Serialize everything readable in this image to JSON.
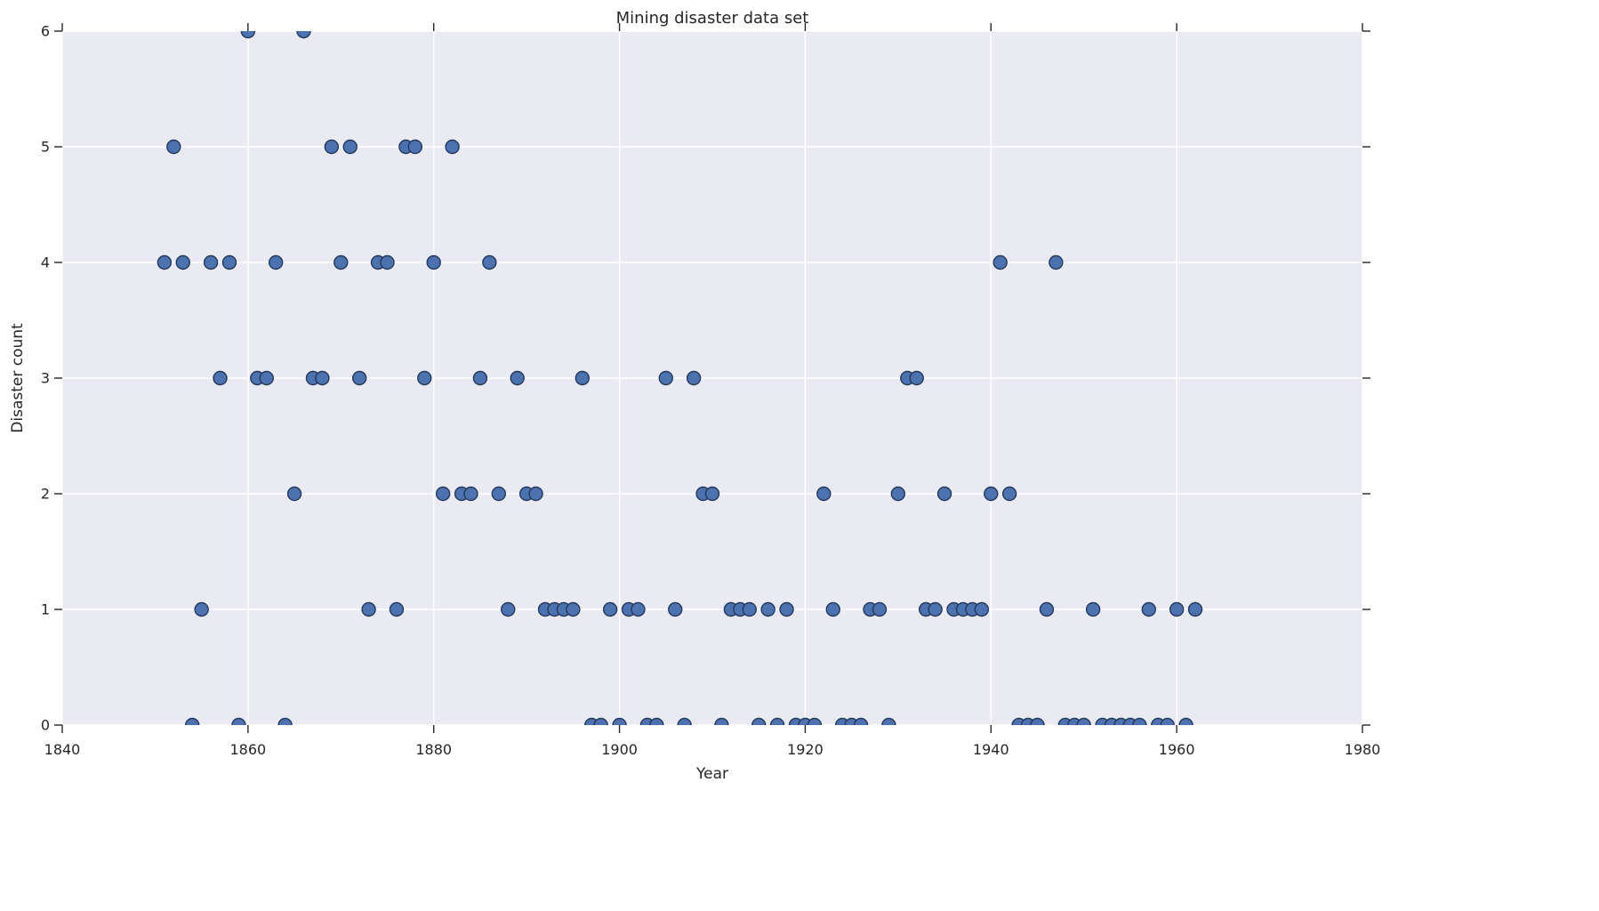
{
  "chart_data": {
    "type": "scatter",
    "title": "Mining disaster data set",
    "xlabel": "Year",
    "ylabel": "Disaster count",
    "xlim": [
      1840,
      1980
    ],
    "ylim": [
      0,
      6
    ],
    "xticks": [
      1840,
      1860,
      1880,
      1900,
      1920,
      1940,
      1960,
      1980
    ],
    "yticks": [
      0,
      1,
      2,
      3,
      4,
      5,
      6
    ],
    "grid": true,
    "legend_position": "none",
    "series": [
      {
        "name": "disasters",
        "x": [
          1851,
          1852,
          1853,
          1854,
          1855,
          1856,
          1857,
          1858,
          1859,
          1860,
          1861,
          1862,
          1863,
          1864,
          1865,
          1866,
          1867,
          1868,
          1869,
          1870,
          1871,
          1872,
          1873,
          1874,
          1875,
          1876,
          1877,
          1878,
          1879,
          1880,
          1881,
          1882,
          1883,
          1884,
          1885,
          1886,
          1887,
          1888,
          1889,
          1890,
          1891,
          1892,
          1893,
          1894,
          1895,
          1896,
          1897,
          1898,
          1899,
          1900,
          1901,
          1902,
          1903,
          1904,
          1905,
          1906,
          1907,
          1908,
          1909,
          1910,
          1911,
          1912,
          1913,
          1914,
          1915,
          1916,
          1917,
          1918,
          1919,
          1920,
          1921,
          1922,
          1923,
          1924,
          1925,
          1926,
          1927,
          1928,
          1929,
          1930,
          1931,
          1932,
          1933,
          1934,
          1935,
          1936,
          1937,
          1938,
          1939,
          1940,
          1941,
          1942,
          1943,
          1944,
          1945,
          1946,
          1947,
          1948,
          1949,
          1950,
          1951,
          1952,
          1953,
          1954,
          1955,
          1956,
          1957,
          1958,
          1959,
          1960,
          1961,
          1962
        ],
        "y": [
          4,
          5,
          4,
          0,
          1,
          4,
          3,
          4,
          0,
          6,
          3,
          3,
          4,
          0,
          2,
          6,
          3,
          3,
          5,
          4,
          5,
          3,
          1,
          4,
          4,
          1,
          5,
          5,
          3,
          4,
          2,
          5,
          2,
          2,
          3,
          4,
          2,
          1,
          3,
          2,
          2,
          1,
          1,
          1,
          1,
          3,
          0,
          0,
          1,
          0,
          1,
          1,
          0,
          0,
          3,
          1,
          0,
          3,
          2,
          2,
          0,
          1,
          1,
          1,
          0,
          1,
          0,
          1,
          0,
          0,
          0,
          2,
          1,
          0,
          0,
          0,
          1,
          1,
          0,
          2,
          3,
          3,
          1,
          1,
          2,
          1,
          1,
          1,
          1,
          2,
          4,
          2,
          0,
          0,
          0,
          1,
          4,
          0,
          0,
          0,
          1,
          0,
          0,
          0,
          0,
          0,
          1,
          0,
          0,
          1,
          0,
          1
        ]
      }
    ],
    "style": {
      "axes_background": "#eaeaf2",
      "grid_color": "#ffffff",
      "point_fill": "#4c72b0",
      "point_edge": "#24385b",
      "text_color": "#262626"
    }
  }
}
